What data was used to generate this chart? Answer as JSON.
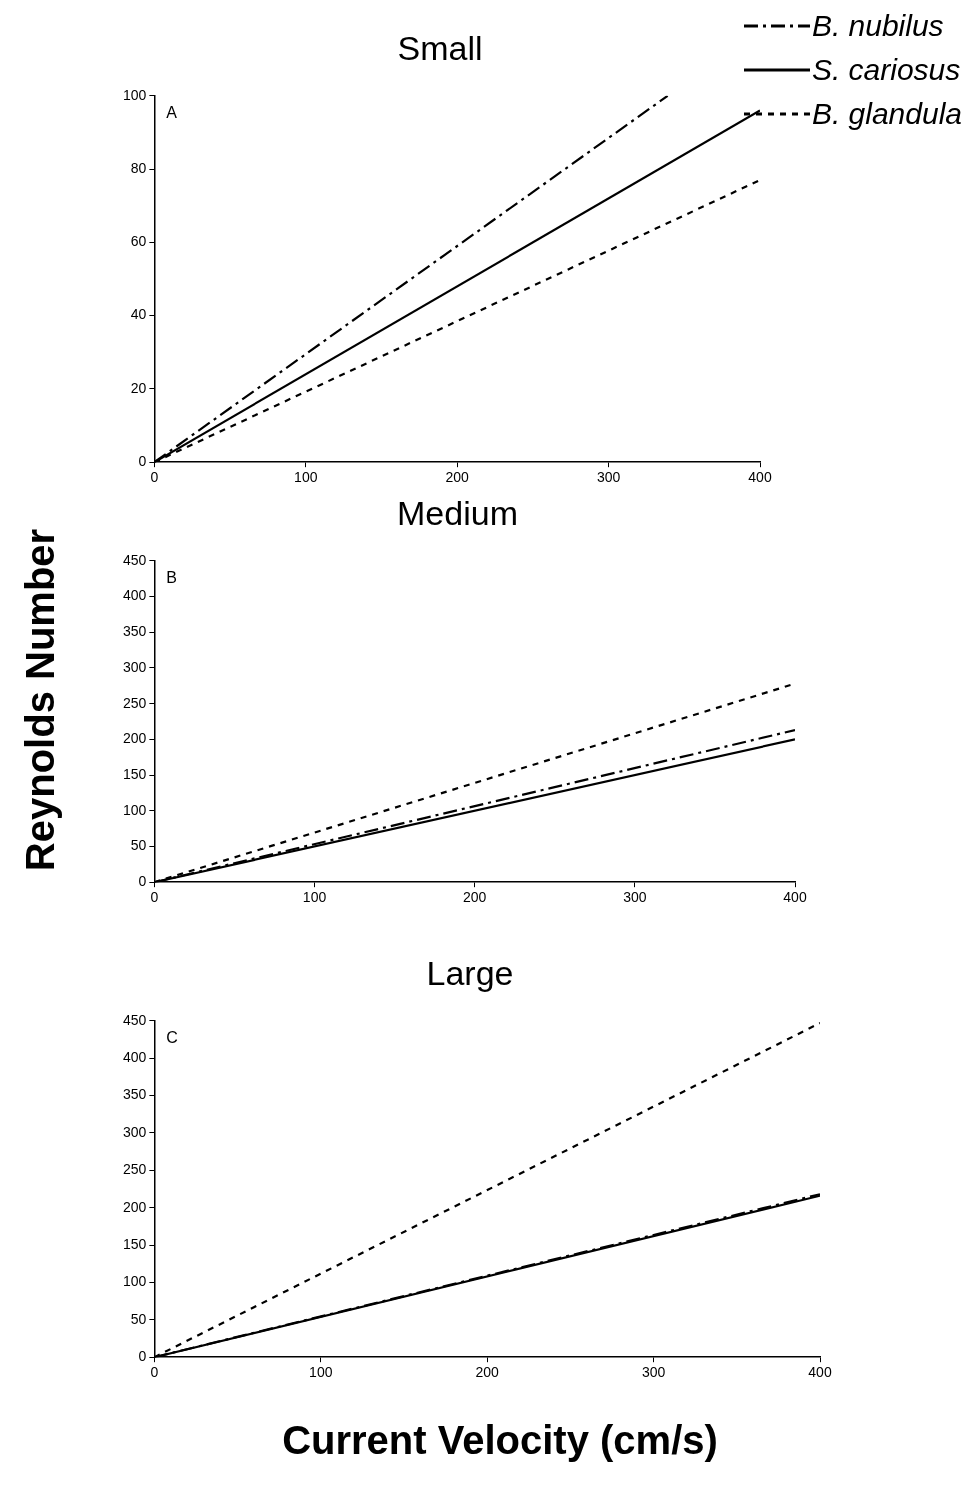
{
  "chart_data": [
    {
      "type": "line",
      "title": "Small",
      "legend": "top right",
      "grid": false,
      "marker": "none",
      "annotations": [
        "A"
      ],
      "xlim": [
        0,
        400
      ],
      "xticks": [
        0,
        100,
        200,
        300,
        400
      ],
      "ylim": [
        0,
        100
      ],
      "yticks": [
        0,
        20,
        40,
        60,
        80,
        100
      ],
      "series": [
        {
          "name": "B. nubilus",
          "color": "#000000",
          "line_style": "dashed",
          "x": [
            0,
            339
          ],
          "values": [
            0,
            100
          ]
        },
        {
          "name": "S. cariosus",
          "color": "#000000",
          "line_style": "solid",
          "x": [
            0,
            400
          ],
          "values": [
            0,
            96
          ]
        },
        {
          "name": "B. glandula",
          "color": "#000000",
          "line_style": "dotted",
          "x": [
            0,
            400
          ],
          "values": [
            0,
            77
          ]
        }
      ]
    },
    {
      "type": "line",
      "title": "Medium",
      "ylabel": "Reynolds Number",
      "grid": false,
      "marker": "none",
      "annotations": [
        "B"
      ],
      "xlim": [
        0,
        400
      ],
      "xticks": [
        0,
        100,
        200,
        300,
        400
      ],
      "ylim": [
        0,
        450
      ],
      "yticks": [
        0,
        50,
        100,
        150,
        200,
        250,
        300,
        350,
        400,
        450
      ],
      "series": [
        {
          "color": "#000000",
          "line_style": "dashed",
          "x": [
            0,
            400
          ],
          "values": [
            0,
            213
          ]
        },
        {
          "color": "#000000",
          "line_style": "solid",
          "x": [
            0,
            400
          ],
          "values": [
            0,
            200
          ]
        },
        {
          "color": "#000000",
          "line_style": "dotted",
          "x": [
            0,
            400
          ],
          "values": [
            0,
            278
          ]
        }
      ]
    },
    {
      "type": "line",
      "title": "Large",
      "xlabel": "Current Velocity (cm/s)",
      "grid": false,
      "marker": "none",
      "annotations": [
        "C"
      ],
      "xlim": [
        0,
        400
      ],
      "xticks": [
        0,
        100,
        200,
        300,
        400
      ],
      "ylim": [
        0,
        450
      ],
      "yticks": [
        0,
        50,
        100,
        150,
        200,
        250,
        300,
        350,
        400,
        450
      ],
      "series": [
        {
          "color": "#000000",
          "line_style": "dashed",
          "x": [
            0,
            400
          ],
          "values": [
            0,
            218
          ]
        },
        {
          "color": "#000000",
          "line_style": "solid",
          "x": [
            0,
            400
          ],
          "values": [
            0,
            216
          ]
        },
        {
          "color": "#000000",
          "line_style": "dotted",
          "x": [
            0,
            400
          ],
          "values": [
            0,
            447
          ]
        }
      ]
    }
  ]
}
